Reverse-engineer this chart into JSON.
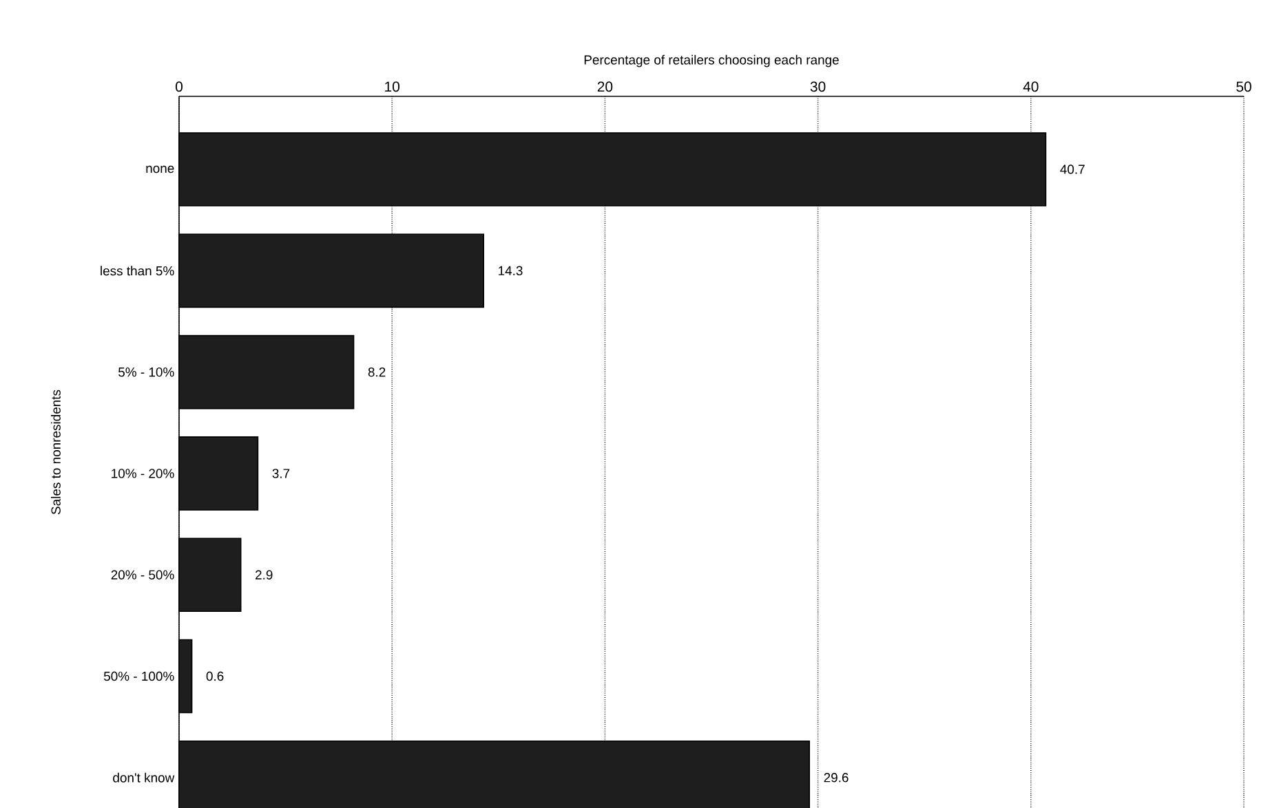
{
  "chart_data": {
    "type": "bar",
    "orientation": "horizontal",
    "xlabel": "Percentage of retailers choosing each range",
    "ylabel": "Sales to nonresidents",
    "categories": [
      "none",
      "less than 5%",
      "5% - 10%",
      "10% - 20%",
      "20% - 50%",
      "50% - 100%",
      "don't know"
    ],
    "values": [
      40.7,
      14.3,
      8.2,
      3.7,
      2.9,
      0.6,
      29.6
    ],
    "value_labels": [
      "40.7",
      "14.3",
      "8.2",
      "3.7",
      "2.9",
      "0.6",
      "29.6"
    ],
    "color": "#1e1e1e",
    "xlim": [
      0,
      50
    ],
    "xticks": [
      0,
      10,
      20,
      30,
      40,
      50
    ],
    "grid": "x"
  }
}
